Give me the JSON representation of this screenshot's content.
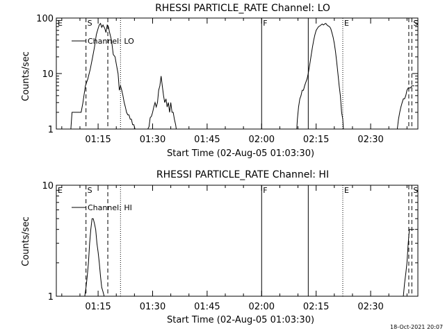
{
  "footer_timestamp": "18-Oct-2021 20:07",
  "chart_data": [
    {
      "type": "line",
      "title": "RHESSI PARTICLE_RATE Channel: LO",
      "xlabel": "Start Time (02-Aug-05 01:03:30)",
      "ylabel": "Counts/sec",
      "y_scale": "log",
      "xlim": [
        "01:03:30",
        "02:43:00"
      ],
      "ylim": [
        1,
        100
      ],
      "x_ticks": [
        "01:15",
        "01:30",
        "01:45",
        "02:00",
        "02:15",
        "02:30"
      ],
      "y_ticks": [
        "1",
        "10",
        "100"
      ],
      "grid": false,
      "legend": {
        "position": "top-left",
        "entries": [
          "Channel: LO"
        ]
      },
      "markers": [
        {
          "label": "E",
          "x": "01:03:30",
          "style": "none"
        },
        {
          "label": "S",
          "x": "01:11:40",
          "style": "dashed"
        },
        {
          "label": "",
          "x": "01:17:40",
          "style": "dashed"
        },
        {
          "label": "",
          "x": "01:21:10",
          "style": "dotted"
        },
        {
          "label": "F",
          "x": "02:00:00",
          "style": "solid"
        },
        {
          "label": "",
          "x": "02:12:50",
          "style": "solid"
        },
        {
          "label": "E",
          "x": "02:22:20",
          "style": "dotted"
        },
        {
          "label": "",
          "x": "02:40:30",
          "style": "dashed"
        },
        {
          "label": "S",
          "x": "02:41:20",
          "style": "dashed"
        }
      ],
      "series": [
        {
          "x": [
            "01:07:30",
            "01:07:50",
            "01:08:20",
            "01:09:00",
            "01:09:40",
            "01:10:20",
            "01:10:50",
            "01:11:30",
            "01:12:10",
            "01:12:50",
            "01:13:30",
            "01:14:00",
            "01:14:30",
            "01:15:00",
            "01:15:20",
            "01:15:40",
            "01:16:00",
            "01:16:20",
            "01:16:50",
            "01:17:10",
            "01:17:30",
            "01:17:50",
            "01:18:10",
            "01:18:40",
            "01:19:10",
            "01:19:40",
            "01:20:00",
            "01:20:30",
            "01:20:50",
            "01:21:10",
            "01:21:30",
            "01:21:50",
            "01:22:10",
            "01:22:30",
            "01:22:50",
            "01:23:10",
            "01:23:30",
            "01:23:50",
            "01:24:10",
            "01:24:30",
            "01:24:50",
            "01:25:10",
            "01:25:30",
            "01:25:50",
            "01:26:10",
            "01:26:30",
            "01:26:50",
            "01:27:10",
            "01:27:30",
            "01:27:50",
            "01:28:00",
            "01:28:20",
            "01:28:40",
            "01:29:00",
            "01:29:20",
            "01:29:40",
            "01:30:00",
            "01:30:20",
            "01:30:40",
            "01:31:00",
            "01:31:20",
            "01:31:40",
            "01:32:00",
            "01:32:20",
            "01:32:40",
            "01:33:00",
            "01:33:20",
            "01:33:40",
            "01:34:00",
            "01:34:20",
            "01:34:40",
            "01:35:00",
            "01:35:20",
            "01:35:40",
            "01:36:00",
            "01:36:20",
            "01:36:30"
          ],
          "y": [
            1,
            2,
            2,
            2,
            2,
            2,
            3,
            6,
            8,
            12,
            20,
            30,
            50,
            65,
            75,
            80,
            68,
            75,
            65,
            55,
            75,
            70,
            55,
            40,
            22,
            20,
            15,
            10,
            5,
            6,
            5,
            4,
            3,
            2.5,
            2,
            1.8,
            1.8,
            1.5,
            1.5,
            1.2,
            1.2,
            1,
            1,
            1,
            1,
            1,
            1,
            1,
            1,
            1,
            1,
            1,
            1,
            1.1,
            1.6,
            1.7,
            2,
            2.5,
            3,
            2.5,
            3,
            5,
            6,
            9,
            6,
            4,
            3,
            3.5,
            2.5,
            3,
            2,
            3,
            2,
            2,
            1.5,
            1.2,
            1
          ]
        },
        {
          "x": [
            "02:09:40",
            "02:09:50",
            "02:10:10",
            "02:10:30",
            "02:10:50",
            "02:11:10",
            "02:11:30",
            "02:11:50",
            "02:12:10",
            "02:12:30",
            "02:12:50",
            "02:13:20",
            "02:13:40",
            "02:14:00",
            "02:14:20",
            "02:14:40",
            "02:15:00",
            "02:15:20",
            "02:15:40",
            "02:16:00",
            "02:16:20",
            "02:16:40",
            "02:17:00",
            "02:17:20",
            "02:17:40",
            "02:18:00",
            "02:18:20",
            "02:18:40",
            "02:19:00",
            "02:19:20",
            "02:19:40",
            "02:20:00",
            "02:20:20",
            "02:20:40",
            "02:21:00",
            "02:21:20",
            "02:21:40",
            "02:22:00",
            "02:22:20",
            "02:22:30"
          ],
          "y": [
            1,
            1.5,
            2.5,
            3.5,
            4,
            5,
            5,
            6,
            7,
            8,
            10,
            16,
            22,
            30,
            40,
            50,
            60,
            65,
            70,
            72,
            75,
            78,
            75,
            78,
            80,
            75,
            72,
            70,
            65,
            55,
            45,
            35,
            25,
            16,
            10,
            6,
            4,
            2,
            1.5,
            1
          ]
        },
        {
          "x": [
            "02:37:20",
            "02:37:40",
            "02:38:00",
            "02:38:20",
            "02:38:40",
            "02:39:00",
            "02:39:20",
            "02:39:40",
            "02:40:00",
            "02:40:20",
            "02:40:40",
            "02:41:00",
            "02:41:20",
            "02:41:40",
            "02:42:00"
          ],
          "y": [
            1,
            1.5,
            2,
            2.5,
            3,
            3.5,
            3.5,
            4,
            5,
            5.5,
            5.5,
            5.5,
            6,
            6,
            6
          ]
        }
      ]
    },
    {
      "type": "line",
      "title": "RHESSI PARTICLE_RATE Channel: HI",
      "xlabel": "Start Time (02-Aug-05 01:03:30)",
      "ylabel": "Counts/sec",
      "y_scale": "log",
      "xlim": [
        "01:03:30",
        "02:43:00"
      ],
      "ylim": [
        1,
        10
      ],
      "x_ticks": [
        "01:15",
        "01:30",
        "01:45",
        "02:00",
        "02:15",
        "02:30"
      ],
      "y_ticks": [
        "1",
        "10"
      ],
      "grid": false,
      "legend": {
        "position": "top-left",
        "entries": [
          "Channel: HI"
        ]
      },
      "markers": [
        {
          "label": "E",
          "x": "01:03:30",
          "style": "none"
        },
        {
          "label": "S",
          "x": "01:11:40",
          "style": "dashed"
        },
        {
          "label": "",
          "x": "01:17:40",
          "style": "dashed"
        },
        {
          "label": "",
          "x": "01:21:10",
          "style": "dotted"
        },
        {
          "label": "F",
          "x": "02:00:00",
          "style": "solid"
        },
        {
          "label": "",
          "x": "02:12:50",
          "style": "solid"
        },
        {
          "label": "E",
          "x": "02:22:20",
          "style": "dotted"
        },
        {
          "label": "",
          "x": "02:40:30",
          "style": "dashed"
        },
        {
          "label": "S",
          "x": "02:41:20",
          "style": "dashed"
        }
      ],
      "series": [
        {
          "x": [
            "01:11:20",
            "01:11:40",
            "01:12:00",
            "01:12:20",
            "01:12:40",
            "01:13:00",
            "01:13:20",
            "01:13:40",
            "01:14:00",
            "01:14:20",
            "01:14:40",
            "01:15:00",
            "01:15:20",
            "01:15:40",
            "01:16:00",
            "01:16:20",
            "01:16:40"
          ],
          "y": [
            1,
            1.2,
            1.5,
            2,
            3,
            4,
            5,
            5,
            4.5,
            4,
            3,
            2.5,
            2,
            1.5,
            1.2,
            1.1,
            1
          ]
        },
        {
          "x": [
            "02:39:00",
            "02:39:20",
            "02:39:40",
            "02:40:00",
            "02:40:20",
            "02:40:40",
            "02:41:00",
            "02:41:20",
            "02:41:40",
            "02:42:00"
          ],
          "y": [
            1,
            1.3,
            1.6,
            2,
            3,
            4,
            4,
            4,
            4,
            4
          ]
        }
      ]
    }
  ]
}
